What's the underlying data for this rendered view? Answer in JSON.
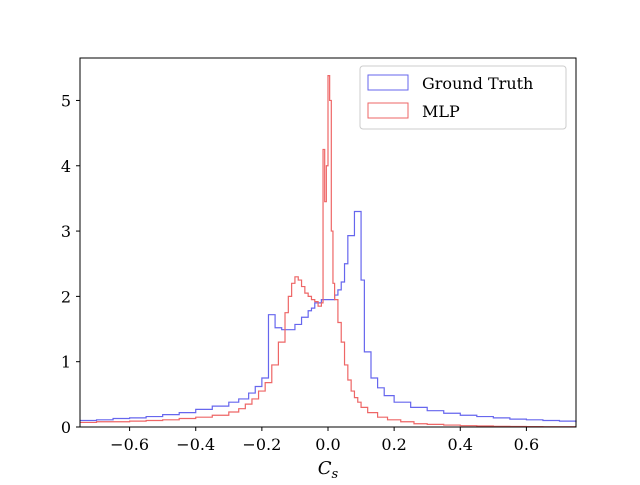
{
  "chart_data": {
    "type": "histogram",
    "xlabel": "C",
    "xlabel_sub": "s",
    "ylabel": "",
    "xlim": [
      -0.75,
      0.75
    ],
    "ylim": [
      0,
      5.65
    ],
    "grid": false,
    "legend_position": "top-right",
    "xticks": [
      -0.6,
      -0.4,
      -0.2,
      0.0,
      0.2,
      0.4,
      0.6
    ],
    "xtick_labels": [
      "−0.6",
      "−0.4",
      "−0.2",
      "0.0",
      "0.2",
      "0.4",
      "0.6"
    ],
    "yticks": [
      0,
      1,
      2,
      3,
      4,
      5
    ],
    "ytick_labels": [
      "0",
      "1",
      "2",
      "3",
      "4",
      "5"
    ],
    "series": [
      {
        "name": "Ground Truth",
        "color": "#6666ee",
        "points": [
          [
            -0.75,
            0.1
          ],
          [
            -0.7,
            0.11
          ],
          [
            -0.65,
            0.13
          ],
          [
            -0.6,
            0.14
          ],
          [
            -0.55,
            0.16
          ],
          [
            -0.5,
            0.19
          ],
          [
            -0.45,
            0.22
          ],
          [
            -0.4,
            0.27
          ],
          [
            -0.35,
            0.32
          ],
          [
            -0.3,
            0.38
          ],
          [
            -0.27,
            0.43
          ],
          [
            -0.24,
            0.52
          ],
          [
            -0.22,
            0.62
          ],
          [
            -0.2,
            0.75
          ],
          [
            -0.19,
            0.75
          ],
          [
            -0.18,
            1.72
          ],
          [
            -0.16,
            1.52
          ],
          [
            -0.14,
            1.49
          ],
          [
            -0.12,
            1.49
          ],
          [
            -0.1,
            1.57
          ],
          [
            -0.08,
            1.68
          ],
          [
            -0.06,
            1.78
          ],
          [
            -0.05,
            1.82
          ],
          [
            -0.04,
            1.9
          ],
          [
            -0.02,
            1.95
          ],
          [
            0.0,
            1.95
          ],
          [
            0.02,
            2.02
          ],
          [
            0.03,
            2.1
          ],
          [
            0.04,
            2.22
          ],
          [
            0.05,
            2.5
          ],
          [
            0.06,
            2.93
          ],
          [
            0.08,
            3.3
          ],
          [
            0.1,
            2.25
          ],
          [
            0.11,
            1.15
          ],
          [
            0.13,
            0.75
          ],
          [
            0.15,
            0.6
          ],
          [
            0.17,
            0.48
          ],
          [
            0.2,
            0.38
          ],
          [
            0.25,
            0.3
          ],
          [
            0.3,
            0.25
          ],
          [
            0.35,
            0.21
          ],
          [
            0.4,
            0.18
          ],
          [
            0.45,
            0.16
          ],
          [
            0.5,
            0.14
          ],
          [
            0.55,
            0.12
          ],
          [
            0.6,
            0.11
          ],
          [
            0.65,
            0.1
          ],
          [
            0.7,
            0.09
          ],
          [
            0.75,
            0.07
          ]
        ]
      },
      {
        "name": "MLP",
        "color": "#ee6666",
        "points": [
          [
            -0.75,
            0.07
          ],
          [
            -0.7,
            0.08
          ],
          [
            -0.65,
            0.08
          ],
          [
            -0.6,
            0.09
          ],
          [
            -0.55,
            0.1
          ],
          [
            -0.5,
            0.11
          ],
          [
            -0.45,
            0.13
          ],
          [
            -0.4,
            0.15
          ],
          [
            -0.35,
            0.18
          ],
          [
            -0.3,
            0.23
          ],
          [
            -0.27,
            0.28
          ],
          [
            -0.25,
            0.35
          ],
          [
            -0.23,
            0.43
          ],
          [
            -0.21,
            0.55
          ],
          [
            -0.19,
            0.68
          ],
          [
            -0.17,
            0.95
          ],
          [
            -0.15,
            1.3
          ],
          [
            -0.13,
            1.75
          ],
          [
            -0.12,
            2.0
          ],
          [
            -0.11,
            2.2
          ],
          [
            -0.1,
            2.3
          ],
          [
            -0.09,
            2.25
          ],
          [
            -0.08,
            2.15
          ],
          [
            -0.07,
            2.05
          ],
          [
            -0.06,
            2.0
          ],
          [
            -0.05,
            1.95
          ],
          [
            -0.04,
            1.92
          ],
          [
            -0.03,
            1.85
          ],
          [
            -0.02,
            1.9
          ],
          [
            -0.015,
            4.25
          ],
          [
            -0.01,
            3.45
          ],
          [
            -0.005,
            4.0
          ],
          [
            0.0,
            5.38
          ],
          [
            0.005,
            5.0
          ],
          [
            0.01,
            3.0
          ],
          [
            0.015,
            2.2
          ],
          [
            0.02,
            1.95
          ],
          [
            0.03,
            1.6
          ],
          [
            0.04,
            1.3
          ],
          [
            0.05,
            0.95
          ],
          [
            0.06,
            0.72
          ],
          [
            0.07,
            0.55
          ],
          [
            0.08,
            0.45
          ],
          [
            0.09,
            0.38
          ],
          [
            0.1,
            0.3
          ],
          [
            0.12,
            0.22
          ],
          [
            0.15,
            0.15
          ],
          [
            0.18,
            0.11
          ],
          [
            0.22,
            0.08
          ],
          [
            0.26,
            0.05
          ],
          [
            0.3,
            0.04
          ],
          [
            0.35,
            0.03
          ],
          [
            0.4,
            0.02
          ],
          [
            0.45,
            0.015
          ],
          [
            0.5,
            0.01
          ],
          [
            0.55,
            0.008
          ],
          [
            0.6,
            0.006
          ],
          [
            0.65,
            0.005
          ],
          [
            0.7,
            0.004
          ],
          [
            0.75,
            0.004
          ]
        ]
      }
    ]
  }
}
